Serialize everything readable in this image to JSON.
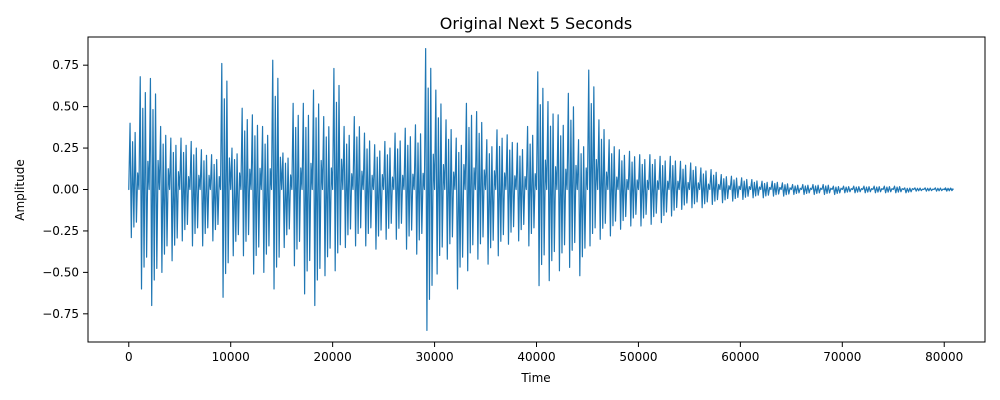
{
  "chart_data": {
    "type": "line",
    "title": "Original Next 5 Seconds",
    "xlabel": "Time",
    "ylabel": "Amplitude",
    "xlim": [
      -4000,
      84000
    ],
    "ylim": [
      -0.92,
      0.92
    ],
    "x_ticks": [
      0,
      10000,
      20000,
      30000,
      40000,
      50000,
      60000,
      70000,
      80000
    ],
    "x_tick_labels": [
      "0",
      "10000",
      "20000",
      "30000",
      "40000",
      "50000",
      "60000",
      "70000",
      "80000"
    ],
    "y_ticks": [
      -0.75,
      -0.5,
      -0.25,
      0.0,
      0.25,
      0.5,
      0.75
    ],
    "y_tick_labels": [
      "−0.75",
      "−0.50",
      "−0.25",
      "0.00",
      "0.25",
      "0.50",
      "0.75"
    ],
    "legend": "none",
    "grid": false,
    "series": [
      {
        "color": "#1f77b4",
        "x": [
          0,
          1000,
          2000,
          3000,
          4000,
          5000,
          6000,
          7000,
          8000,
          9000,
          10000,
          11000,
          12000,
          13000,
          14000,
          15000,
          16000,
          17000,
          18000,
          19000,
          20000,
          21000,
          22000,
          23000,
          24000,
          25000,
          26000,
          27000,
          28000,
          29000,
          30000,
          31000,
          32000,
          33000,
          34000,
          35000,
          36000,
          37000,
          38000,
          39000,
          40000,
          41000,
          42000,
          43000,
          44000,
          45000,
          46000,
          47000,
          48000,
          49000,
          50000,
          51000,
          52000,
          53000,
          54000,
          55000,
          56000,
          57000,
          58000,
          59000,
          60000,
          61000,
          62000,
          63000,
          64000,
          65000,
          66000,
          67000,
          68000,
          69000,
          70000,
          71000,
          72000,
          73000,
          74000,
          75000,
          76000,
          77000,
          78000,
          79000,
          80000
        ],
        "upper": [
          0.4,
          0.68,
          0.67,
          0.38,
          0.31,
          0.31,
          0.29,
          0.24,
          0.21,
          0.76,
          0.25,
          0.49,
          0.45,
          0.38,
          0.78,
          0.22,
          0.52,
          0.52,
          0.6,
          0.44,
          0.73,
          0.38,
          0.44,
          0.34,
          0.27,
          0.29,
          0.34,
          0.37,
          0.39,
          0.85,
          0.6,
          0.42,
          0.31,
          0.52,
          0.47,
          0.3,
          0.36,
          0.33,
          0.28,
          0.38,
          0.71,
          0.53,
          0.45,
          0.58,
          0.3,
          0.72,
          0.42,
          0.3,
          0.24,
          0.23,
          0.21,
          0.21,
          0.2,
          0.2,
          0.17,
          0.16,
          0.13,
          0.12,
          0.09,
          0.08,
          0.07,
          0.06,
          0.05,
          0.05,
          0.04,
          0.03,
          0.03,
          0.03,
          0.03,
          0.02,
          0.02,
          0.02,
          0.02,
          0.02,
          0.02,
          0.02,
          0.01,
          0.01,
          0.01,
          0.01,
          0.01
        ],
        "lower": [
          -0.29,
          -0.6,
          -0.7,
          -0.5,
          -0.43,
          -0.31,
          -0.34,
          -0.34,
          -0.31,
          -0.65,
          -0.4,
          -0.4,
          -0.51,
          -0.5,
          -0.6,
          -0.35,
          -0.46,
          -0.63,
          -0.7,
          -0.52,
          -0.49,
          -0.35,
          -0.34,
          -0.34,
          -0.36,
          -0.3,
          -0.3,
          -0.36,
          -0.39,
          -0.85,
          -0.51,
          -0.42,
          -0.6,
          -0.49,
          -0.42,
          -0.45,
          -0.4,
          -0.33,
          -0.31,
          -0.34,
          -0.58,
          -0.55,
          -0.49,
          -0.47,
          -0.52,
          -0.34,
          -0.3,
          -0.28,
          -0.24,
          -0.22,
          -0.22,
          -0.21,
          -0.2,
          -0.16,
          -0.12,
          -0.11,
          -0.11,
          -0.09,
          -0.08,
          -0.07,
          -0.06,
          -0.05,
          -0.05,
          -0.04,
          -0.04,
          -0.03,
          -0.03,
          -0.03,
          -0.03,
          -0.03,
          -0.02,
          -0.02,
          -0.02,
          -0.02,
          -0.02,
          -0.02,
          -0.02,
          -0.01,
          -0.01,
          -0.01,
          -0.01
        ]
      }
    ]
  }
}
